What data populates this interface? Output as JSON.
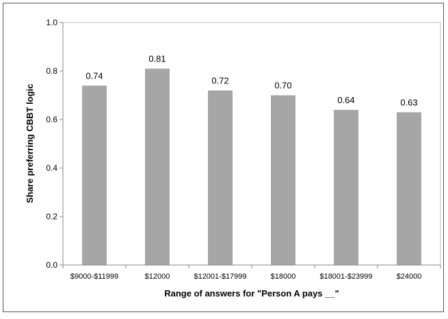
{
  "chart_data": {
    "type": "bar",
    "categories": [
      "$9000-$11999",
      "$12000",
      "$12001-$17999",
      "$18000",
      "$18001-$23999",
      "$24000"
    ],
    "values": [
      0.74,
      0.81,
      0.72,
      0.7,
      0.64,
      0.63
    ],
    "data_labels": [
      "0.74",
      "0.81",
      "0.72",
      "0.70",
      "0.64",
      "0.63"
    ],
    "title": "",
    "xlabel": "Range of answers for \"Person A pays __\"",
    "ylabel": "Share preferring CBBT logic",
    "ylim": [
      0,
      1.0
    ],
    "yticks": [
      "0.0",
      "0.2",
      "0.4",
      "0.6",
      "0.8",
      "1.0"
    ],
    "grid": false,
    "legend": "none",
    "colors": {
      "bar": "#a6a6a6",
      "axis": "#868686",
      "frame": "#555555",
      "plot_border": "#bfbfbf"
    }
  }
}
